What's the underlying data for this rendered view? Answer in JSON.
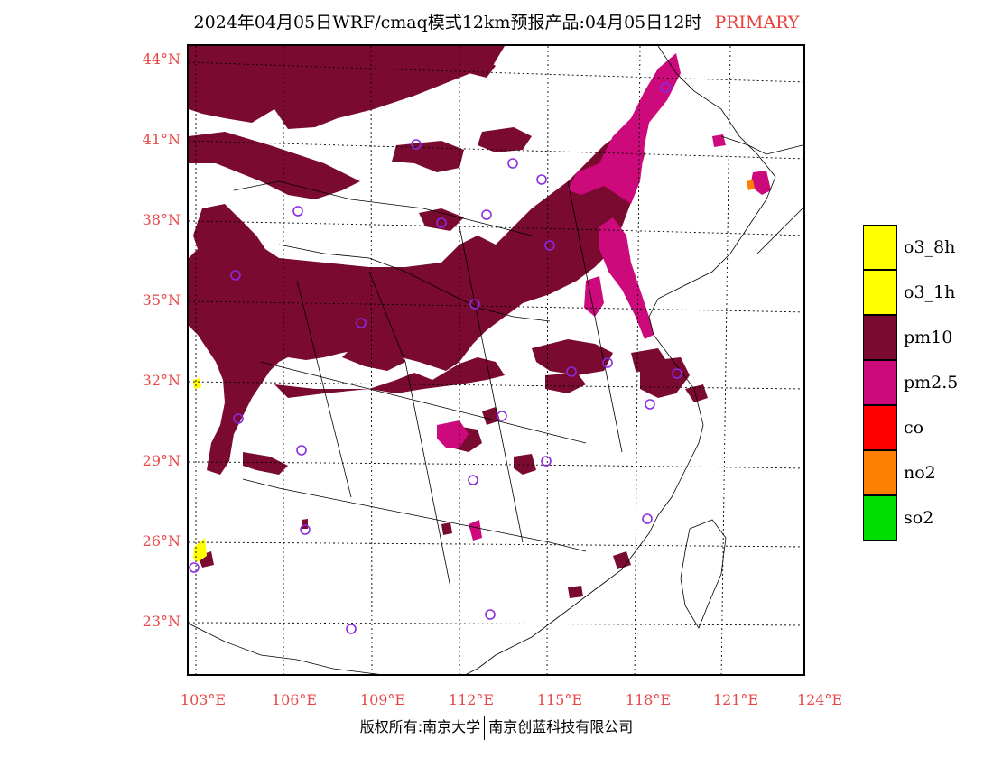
{
  "title": {
    "main": "2024年04月05日WRF/cmaq模式12km预报产品:04月05日12时",
    "tag": "PRIMARY"
  },
  "map": {
    "lat_ticks": [
      "44°N",
      "41°N",
      "38°N",
      "35°N",
      "32°N",
      "29°N",
      "26°N",
      "23°N"
    ],
    "lon_ticks": [
      "103°E",
      "106°E",
      "109°E",
      "112°E",
      "115°E",
      "118°E",
      "121°E",
      "124°E"
    ],
    "colors": {
      "pm10": "#7a0a30",
      "pm25": "#cc0a7c",
      "o3": "#ffff00",
      "no2": "#ff8000",
      "city_marker": "#8a2be2",
      "tick_label": "#e84848"
    }
  },
  "legend": {
    "items": [
      {
        "label": "o3_8h",
        "color": "#ffff00"
      },
      {
        "label": "o3_1h",
        "color": "#ffff00"
      },
      {
        "label": "pm10",
        "color": "#7a0a30"
      },
      {
        "label": "pm2.5",
        "color": "#cc0a7c"
      },
      {
        "label": "co",
        "color": "#ff0000"
      },
      {
        "label": "no2",
        "color": "#ff8000"
      },
      {
        "label": "so2",
        "color": "#00dd00"
      }
    ]
  },
  "footer": {
    "left": "版权所有:南京大学",
    "right": "南京创蓝科技有限公司"
  }
}
